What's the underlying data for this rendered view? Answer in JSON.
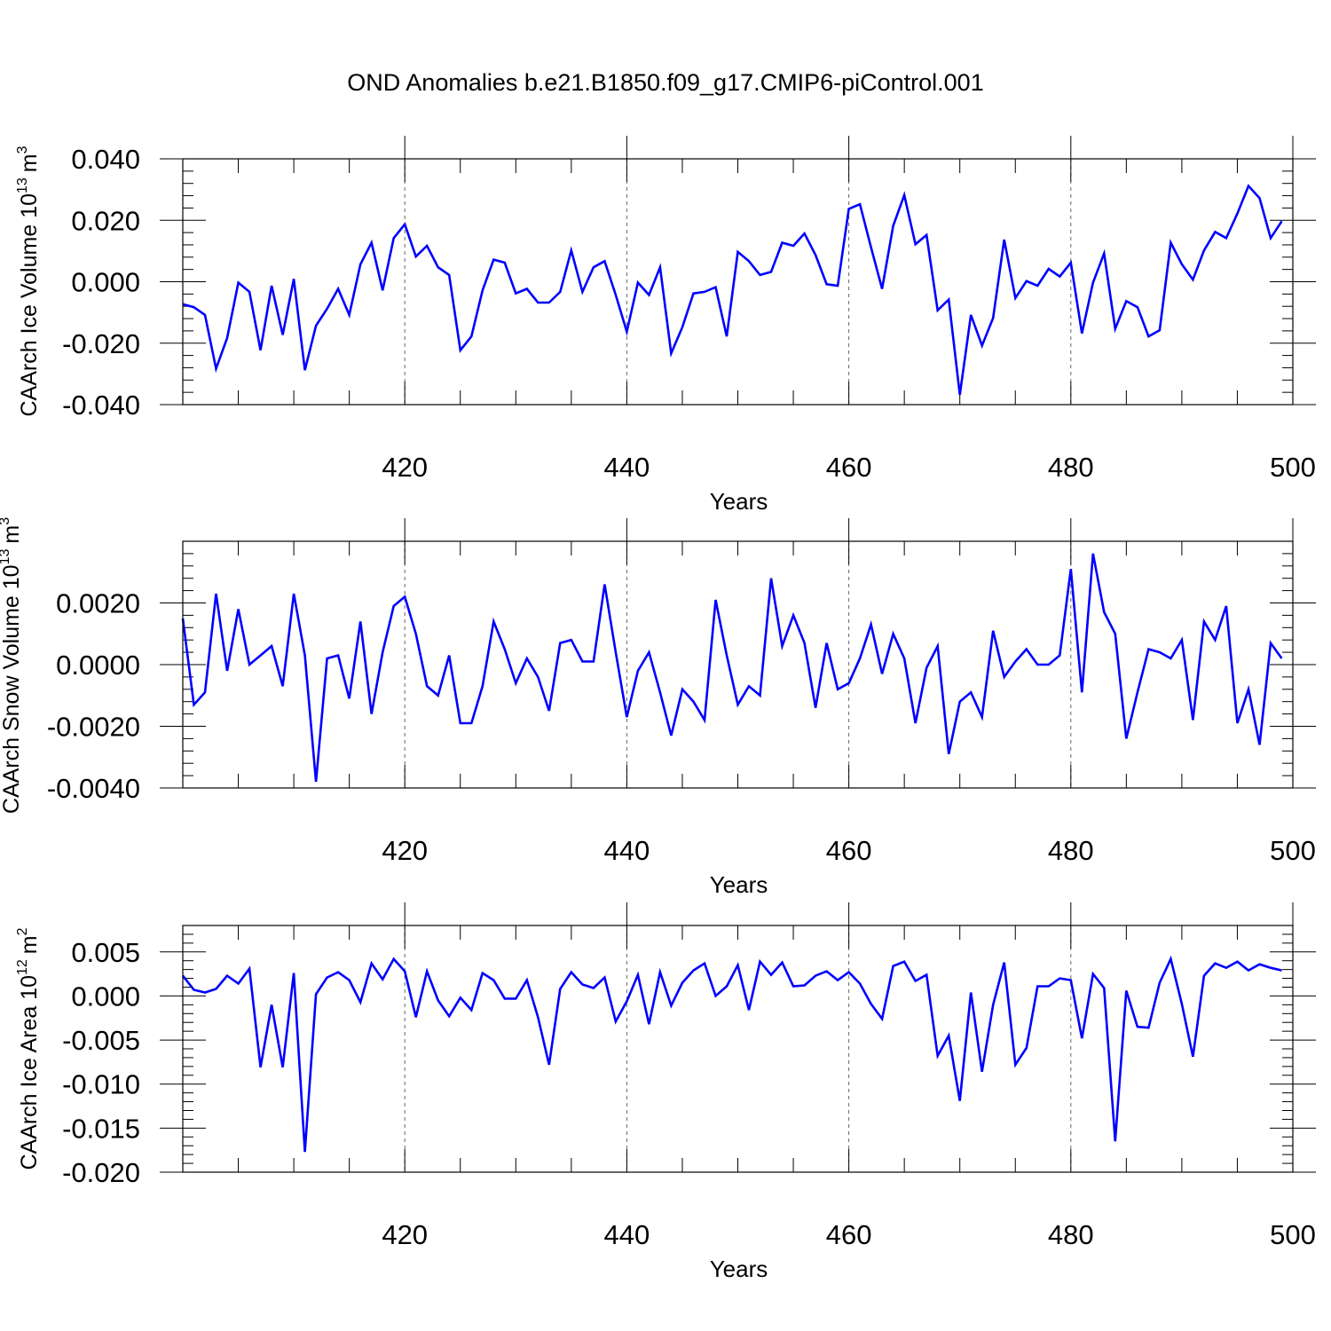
{
  "title": "OND Anomalies b.e21.B1850.f09_g17.CMIP6-piControl.001",
  "chart_data": [
    {
      "type": "line",
      "ylabel": "CAArch Ice Volume 10",
      "ylabel_exp": "13",
      "ylabel_unit": "m",
      "ylabel_unit_exp": "3",
      "xlabel": "Years",
      "xlim": [
        400,
        500
      ],
      "ylim": [
        -0.04,
        0.04
      ],
      "xticks": [
        420,
        440,
        460,
        480,
        500
      ],
      "yticks": [
        -0.04,
        -0.02,
        0.0,
        0.02,
        0.04
      ],
      "ytick_labels": [
        "-0.040",
        "-0.020",
        "0.000",
        "0.020",
        "0.040"
      ],
      "line_color": "#0000ff",
      "x_start": 400,
      "values": [
        -0.0073,
        -0.0083,
        -0.0108,
        -0.0283,
        -0.0183,
        -0.0003,
        -0.0033,
        -0.0223,
        -0.0013,
        -0.0173,
        0.0009,
        -0.0288,
        -0.0143,
        -0.0088,
        -0.0023,
        -0.0108,
        0.0057,
        0.0127,
        -0.0028,
        0.0142,
        0.0187,
        0.0082,
        0.0117,
        0.0047,
        0.0022,
        -0.0223,
        -0.0178,
        -0.0028,
        0.0072,
        0.0062,
        -0.0038,
        -0.0023,
        -0.0068,
        -0.0068,
        -0.0033,
        0.0102,
        -0.0033,
        0.0047,
        0.0067,
        -0.0043,
        -0.0163,
        -0.0003,
        -0.0043,
        0.0047,
        -0.0233,
        -0.0148,
        -0.0038,
        -0.0033,
        -0.0018,
        -0.0178,
        0.0097,
        0.0067,
        0.0022,
        0.0032,
        0.0127,
        0.0117,
        0.0157,
        0.0087,
        -0.0008,
        -0.0013,
        0.0237,
        0.0252,
        0.0112,
        -0.0023,
        0.0182,
        0.0282,
        0.0122,
        0.0152,
        -0.0093,
        -0.0058,
        -0.0368,
        -0.0108,
        -0.0208,
        -0.0118,
        0.0137,
        -0.0053,
        0.0002,
        -0.0013,
        0.0042,
        0.0017,
        0.0062,
        -0.0168,
        -0.0003,
        0.0092,
        -0.0153,
        -0.0063,
        -0.0083,
        -0.0178,
        -0.0158,
        0.0127,
        0.0057,
        0.0007,
        0.0102,
        0.0162,
        0.0142,
        0.0222,
        0.0312,
        0.0272,
        0.0142,
        0.0197
      ]
    },
    {
      "type": "line",
      "ylabel": "CAArch Snow Volume 10",
      "ylabel_exp": "13",
      "ylabel_unit": "m",
      "ylabel_unit_exp": "3",
      "xlabel": "Years",
      "xlim": [
        400,
        500
      ],
      "ylim": [
        -0.004,
        0.004
      ],
      "xticks": [
        420,
        440,
        460,
        480,
        500
      ],
      "yticks": [
        -0.004,
        -0.002,
        0.0,
        0.002
      ],
      "ytick_labels": [
        "-0.0040",
        "-0.0020",
        "0.0000",
        "0.0020"
      ],
      "line_color": "#0000ff",
      "x_start": 400,
      "values": [
        0.0015,
        -0.0013,
        -0.0009,
        0.0023,
        -0.0002,
        0.0018,
        0.0,
        0.0003,
        0.0006,
        -0.0007,
        0.0023,
        0.0003,
        -0.0038,
        0.0002,
        0.0003,
        -0.0011,
        0.0014,
        -0.0016,
        0.0004,
        0.0019,
        0.0022,
        0.001,
        -0.0007,
        -0.001,
        0.0003,
        -0.0019,
        -0.0019,
        -0.0007,
        0.0014,
        0.0005,
        -0.0006,
        0.0002,
        -0.0004,
        -0.0015,
        0.0007,
        0.0008,
        0.0001,
        0.0001,
        0.0026,
        0.0004,
        -0.0017,
        -0.0002,
        0.0004,
        -0.0009,
        -0.0023,
        -0.0008,
        -0.0012,
        -0.0018,
        0.0021,
        0.0003,
        -0.0013,
        -0.0007,
        -0.001,
        0.0028,
        0.0006,
        0.0016,
        0.0007,
        -0.0014,
        0.0007,
        -0.0008,
        -0.0006,
        0.0002,
        0.0013,
        -0.0003,
        0.001,
        0.0002,
        -0.0019,
        -0.0001,
        0.0006,
        -0.0029,
        -0.0012,
        -0.0009,
        -0.0017,
        0.0011,
        -0.0004,
        0.0001,
        0.0005,
        0.0,
        0.0,
        0.0003,
        0.0031,
        -0.0009,
        0.0036,
        0.0017,
        0.001,
        -0.0024,
        -0.0009,
        0.0005,
        0.0004,
        0.0002,
        0.0008,
        -0.0018,
        0.0014,
        0.0008,
        0.0019,
        -0.0019,
        -0.0008,
        -0.0026,
        0.0007,
        0.0002
      ]
    },
    {
      "type": "line",
      "ylabel": "CAArch Ice Area 10",
      "ylabel_exp": "12",
      "ylabel_unit": "m",
      "ylabel_unit_exp": "2",
      "xlabel": "Years",
      "xlim": [
        400,
        500
      ],
      "ylim": [
        -0.02,
        0.008
      ],
      "xticks": [
        420,
        440,
        460,
        480,
        500
      ],
      "yticks": [
        -0.02,
        -0.015,
        -0.01,
        -0.005,
        0.0,
        0.005
      ],
      "ytick_labels": [
        "-0.020",
        "-0.015",
        "-0.010",
        "-0.005",
        "0.000",
        "0.005"
      ],
      "line_color": "#0000ff",
      "x_start": 400,
      "values": [
        0.0023,
        0.0007,
        0.0004,
        0.0008,
        0.0023,
        0.0014,
        0.0031,
        -0.0081,
        -0.001,
        -0.0081,
        0.0026,
        -0.0177,
        0.0002,
        0.0021,
        0.0027,
        0.0018,
        -0.0007,
        0.0037,
        0.0019,
        0.0042,
        0.0028,
        -0.0024,
        0.0028,
        -0.0005,
        -0.0023,
        -0.0002,
        -0.0016,
        0.0026,
        0.0018,
        -0.0003,
        -0.0003,
        0.0018,
        -0.0024,
        -0.0078,
        0.0008,
        0.0027,
        0.0013,
        0.0009,
        0.0021,
        -0.0029,
        -0.0006,
        0.0024,
        -0.0032,
        0.0027,
        -0.0011,
        0.0015,
        0.0029,
        0.0037,
        0.0,
        0.0011,
        0.0035,
        -0.0016,
        0.0039,
        0.0024,
        0.0038,
        0.0011,
        0.0012,
        0.0023,
        0.0028,
        0.0018,
        0.0027,
        0.0014,
        -0.0009,
        -0.0026,
        0.0034,
        0.0039,
        0.0017,
        0.0024,
        -0.0068,
        -0.0045,
        -0.0119,
        0.0004,
        -0.0086,
        -0.001,
        0.0038,
        -0.0078,
        -0.0059,
        0.0011,
        0.0011,
        0.002,
        0.0018,
        -0.0048,
        0.0025,
        0.0009,
        -0.0165,
        0.0006,
        -0.0035,
        -0.0036,
        0.0015,
        0.0042,
        -0.0009,
        -0.0069,
        0.0023,
        0.0037,
        0.0032,
        0.0039,
        0.0029,
        0.0036,
        0.0032,
        0.0029
      ]
    }
  ]
}
